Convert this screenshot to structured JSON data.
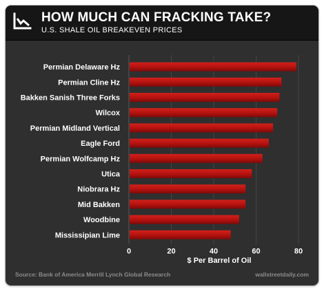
{
  "header": {
    "title": "HOW MUCH CAN FRACKING TAKE?",
    "subtitle": "U.S. SHALE OIL BREAKEVEN PRICES",
    "logo_icon": "line-chart-icon"
  },
  "footer": {
    "source": "Source: Bank of America Merrill Lynch Global Research",
    "brand": "wallstreetdaily.com"
  },
  "colors": {
    "background": "#2f2f2f",
    "header": "#161616",
    "bar": "#b3120f",
    "text": "#ffffff",
    "grid": "#454545"
  },
  "chart_data": {
    "type": "bar",
    "orientation": "horizontal",
    "categories": [
      "Permian Delaware Hz",
      "Permian Cline Hz",
      "Bakken Sanish Three Forks",
      "Wilcox",
      "Permian Midland Vertical",
      "Eagle Ford",
      "Permian Wolfcamp Hz",
      "Utica",
      "Niobrara Hz",
      "Mid Bakken",
      "Woodbine",
      "Mississipian Lime"
    ],
    "values": [
      79,
      72,
      71,
      70,
      68,
      66,
      63,
      58,
      55,
      55,
      52,
      48
    ],
    "xlabel": "$ Per Barrel of Oil",
    "ylabel": "",
    "xlim": [
      0,
      80
    ],
    "xticks": [
      0,
      20,
      40,
      60,
      80
    ],
    "grid": true,
    "legend": "none"
  }
}
